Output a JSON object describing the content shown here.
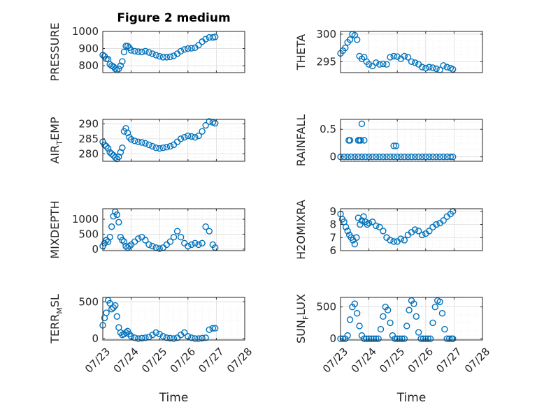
{
  "chart_data": [
    {
      "id": "pressure",
      "type": "scatter",
      "title": "Figure 2 medium",
      "ylabel": "PRESSURE",
      "ylim": [
        760,
        1000
      ],
      "yticks": [
        800,
        900,
        1000
      ],
      "ytick_labels": [
        "800",
        "900",
        "1000"
      ],
      "xlim": [
        "07/23",
        "07/28"
      ],
      "xticks": [
        "07/23",
        "07/24",
        "07/25",
        "07/26",
        "07/27",
        "07/28"
      ],
      "xticks_visible": false,
      "color": "#0072bd",
      "grid": true,
      "minor_grid": true,
      "x": [
        "07/23 00:00",
        "07/23 01:30",
        "07/23 03:00",
        "07/23 04:30",
        "07/23 06:00",
        "07/23 07:30",
        "07/23 09:00",
        "07/23 10:30",
        "07/23 12:00",
        "07/23 13:30",
        "07/23 15:00",
        "07/23 16:30",
        "07/23 18:00",
        "07/23 19:30",
        "07/23 21:00",
        "07/23 22:30",
        "07/24 00:00",
        "07/24 03:00",
        "07/24 06:00",
        "07/24 09:00",
        "07/24 12:00",
        "07/24 15:00",
        "07/24 18:00",
        "07/24 21:00",
        "07/25 00:00",
        "07/25 03:00",
        "07/25 06:00",
        "07/25 09:00",
        "07/25 12:00",
        "07/25 15:00",
        "07/25 18:00",
        "07/25 21:00",
        "07/26 00:00",
        "07/26 03:00",
        "07/26 06:00",
        "07/26 09:00",
        "07/26 12:00",
        "07/26 15:00",
        "07/26 18:00",
        "07/26 21:00",
        "07/26 23:00"
      ],
      "y": [
        862,
        855,
        840,
        838,
        808,
        800,
        795,
        782,
        775,
        782,
        800,
        825,
        880,
        915,
        915,
        905,
        890,
        885,
        882,
        880,
        885,
        878,
        870,
        862,
        855,
        850,
        850,
        852,
        858,
        870,
        885,
        895,
        900,
        902,
        905,
        920,
        940,
        955,
        965,
        965,
        968
      ]
    },
    {
      "id": "theta",
      "type": "scatter",
      "ylabel": "THETA",
      "ylim": [
        293,
        300.5
      ],
      "yticks": [
        295,
        300
      ],
      "ytick_labels": [
        "295",
        "300"
      ],
      "xlim": [
        "07/23",
        "07/28"
      ],
      "xticks": [
        "07/23",
        "07/24",
        "07/25",
        "07/26",
        "07/27",
        "07/28"
      ],
      "xticks_visible": false,
      "color": "#0072bd",
      "grid": true,
      "minor_grid": true,
      "x": [
        "07/23 00:00",
        "07/23 02:00",
        "07/23 04:00",
        "07/23 06:00",
        "07/23 08:00",
        "07/23 10:00",
        "07/23 12:00",
        "07/23 14:00",
        "07/23 16:00",
        "07/23 18:00",
        "07/23 20:00",
        "07/23 22:00",
        "07/24 00:00",
        "07/24 03:00",
        "07/24 06:00",
        "07/24 09:00",
        "07/24 12:00",
        "07/24 15:00",
        "07/24 18:00",
        "07/24 21:00",
        "07/25 00:00",
        "07/25 03:00",
        "07/25 06:00",
        "07/25 09:00",
        "07/25 12:00",
        "07/25 15:00",
        "07/25 18:00",
        "07/25 21:00",
        "07/26 00:00",
        "07/26 03:00",
        "07/26 06:00",
        "07/26 09:00",
        "07/26 12:00",
        "07/26 15:00",
        "07/26 18:00",
        "07/26 21:00",
        "07/26 23:00"
      ],
      "y": [
        296.5,
        297.0,
        297.5,
        298.5,
        299.0,
        300.0,
        299.8,
        299.0,
        296.0,
        295.5,
        295.8,
        295.0,
        294.5,
        294.2,
        294.8,
        294.5,
        294.6,
        294.5,
        295.8,
        296.0,
        295.9,
        295.5,
        296.0,
        295.8,
        295.0,
        294.8,
        294.5,
        294.0,
        293.8,
        294.0,
        293.9,
        293.7,
        293.5,
        294.3,
        294.0,
        293.8,
        293.6
      ]
    },
    {
      "id": "air_temp",
      "type": "scatter",
      "ylabel": "AIR_TEMP",
      "ylabel_main": "AIR",
      "ylabel_sub": "T",
      "ylabel_rest": "EMP",
      "ylim": [
        277.5,
        291.5
      ],
      "yticks": [
        280,
        285,
        290
      ],
      "ytick_labels": [
        "280",
        "285",
        "290"
      ],
      "xlim": [
        "07/23",
        "07/28"
      ],
      "xticks": [
        "07/23",
        "07/24",
        "07/25",
        "07/26",
        "07/27",
        "07/28"
      ],
      "xticks_visible": false,
      "color": "#0072bd",
      "grid": true,
      "minor_grid": true,
      "x": [
        "07/23 00:00",
        "07/23 01:30",
        "07/23 03:00",
        "07/23 04:30",
        "07/23 06:00",
        "07/23 07:30",
        "07/23 09:00",
        "07/23 10:30",
        "07/23 12:00",
        "07/23 13:30",
        "07/23 15:00",
        "07/23 16:30",
        "07/23 18:00",
        "07/23 19:30",
        "07/23 21:00",
        "07/23 22:30",
        "07/24 00:00",
        "07/24 03:00",
        "07/24 06:00",
        "07/24 09:00",
        "07/24 12:00",
        "07/24 15:00",
        "07/24 18:00",
        "07/24 21:00",
        "07/25 00:00",
        "07/25 03:00",
        "07/25 06:00",
        "07/25 09:00",
        "07/25 12:00",
        "07/25 15:00",
        "07/25 18:00",
        "07/25 21:00",
        "07/26 00:00",
        "07/26 03:00",
        "07/26 06:00",
        "07/26 09:00",
        "07/26 12:00",
        "07/26 15:00",
        "07/26 18:00",
        "07/26 21:00",
        "07/26 23:00"
      ],
      "y": [
        284.0,
        283.0,
        282.5,
        281.8,
        280.5,
        280.0,
        279.5,
        278.8,
        278.3,
        279.0,
        280.5,
        282.0,
        287.5,
        288.5,
        287.0,
        285.5,
        284.8,
        284.3,
        284.0,
        283.8,
        283.5,
        283.0,
        282.5,
        282.0,
        281.8,
        282.0,
        282.2,
        282.5,
        283.0,
        284.0,
        285.0,
        285.5,
        286.0,
        285.8,
        285.5,
        286.0,
        287.5,
        289.5,
        290.8,
        290.5,
        290.2
      ]
    },
    {
      "id": "rainfall",
      "type": "scatter",
      "ylabel": "RAINFALL",
      "ylim": [
        -0.08,
        0.68
      ],
      "yticks": [
        0,
        0.5
      ],
      "ytick_labels": [
        "0",
        "0.5"
      ],
      "xlim": [
        "07/23",
        "07/28"
      ],
      "xticks": [
        "07/23",
        "07/24",
        "07/25",
        "07/26",
        "07/27",
        "07/28"
      ],
      "xticks_visible": false,
      "color": "#0072bd",
      "grid": true,
      "minor_grid": true,
      "x": [
        "07/23 00:00",
        "07/23 03:00",
        "07/23 06:00",
        "07/23 09:00",
        "07/23 12:00",
        "07/23 15:00",
        "07/23 18:00",
        "07/23 21:00",
        "07/24 00:00",
        "07/24 03:00",
        "07/24 06:00",
        "07/24 09:00",
        "07/24 12:00",
        "07/24 15:00",
        "07/24 18:00",
        "07/24 21:00",
        "07/25 00:00",
        "07/25 03:00",
        "07/25 06:00",
        "07/25 09:00",
        "07/25 12:00",
        "07/25 15:00",
        "07/25 18:00",
        "07/25 21:00",
        "07/26 00:00",
        "07/26 03:00",
        "07/26 06:00",
        "07/26 09:00",
        "07/26 12:00",
        "07/26 15:00",
        "07/26 18:00",
        "07/26 21:00",
        "07/26 23:00",
        "07/23 07:00",
        "07/23 08:00",
        "07/23 15:00",
        "07/23 16:00",
        "07/23 17:00",
        "07/23 18:00",
        "07/23 20:00",
        "07/24 21:00",
        "07/24 23:00"
      ],
      "y": [
        0,
        0,
        0,
        0,
        0,
        0,
        0,
        0,
        0,
        0,
        0,
        0,
        0,
        0,
        0,
        0,
        0,
        0,
        0,
        0,
        0,
        0,
        0,
        0,
        0,
        0,
        0,
        0,
        0,
        0,
        0,
        0,
        0,
        0.3,
        0.3,
        0.3,
        0.3,
        0.3,
        0.6,
        0.3,
        0.2,
        0.2
      ]
    },
    {
      "id": "mixdepth",
      "type": "scatter",
      "ylabel": "MIXDEPTH",
      "ylim": [
        -50,
        1350
      ],
      "yticks": [
        0,
        500,
        1000
      ],
      "ytick_labels": [
        "0",
        "500",
        "1000"
      ],
      "xlim": [
        "07/23",
        "07/28"
      ],
      "xticks": [
        "07/23",
        "07/24",
        "07/25",
        "07/26",
        "07/27",
        "07/28"
      ],
      "xticks_visible": false,
      "color": "#0072bd",
      "grid": true,
      "minor_grid": true,
      "x": [
        "07/23 00:00",
        "07/23 01:30",
        "07/23 03:00",
        "07/23 04:30",
        "07/23 06:00",
        "07/23 07:30",
        "07/23 09:00",
        "07/23 10:30",
        "07/23 12:00",
        "07/23 13:30",
        "07/23 15:00",
        "07/23 16:30",
        "07/23 18:00",
        "07/23 19:30",
        "07/23 21:00",
        "07/23 22:30",
        "07/24 00:00",
        "07/24 03:00",
        "07/24 06:00",
        "07/24 09:00",
        "07/24 12:00",
        "07/24 15:00",
        "07/24 18:00",
        "07/24 21:00",
        "07/25 00:00",
        "07/25 03:00",
        "07/25 06:00",
        "07/25 09:00",
        "07/25 12:00",
        "07/25 15:00",
        "07/25 18:00",
        "07/25 21:00",
        "07/26 00:00",
        "07/26 03:00",
        "07/26 06:00",
        "07/26 09:00",
        "07/26 12:00",
        "07/26 15:00",
        "07/26 18:00",
        "07/26 21:00",
        "07/26 23:00"
      ],
      "y": [
        100,
        200,
        300,
        250,
        400,
        750,
        1100,
        1250,
        1150,
        900,
        400,
        300,
        250,
        100,
        50,
        100,
        150,
        250,
        350,
        400,
        300,
        150,
        100,
        50,
        20,
        50,
        150,
        250,
        400,
        600,
        400,
        200,
        100,
        150,
        200,
        150,
        200,
        750,
        600,
        150,
        50
      ]
    },
    {
      "id": "h2omixra",
      "type": "scatter",
      "ylabel": "H2OMIXRA",
      "ylim": [
        6,
        9.2
      ],
      "yticks": [
        6,
        7,
        8,
        9
      ],
      "ytick_labels": [
        "6",
        "7",
        "8",
        "9"
      ],
      "xlim": [
        "07/23",
        "07/28"
      ],
      "xticks": [
        "07/23",
        "07/24",
        "07/25",
        "07/26",
        "07/27",
        "07/28"
      ],
      "xticks_visible": false,
      "color": "#0072bd",
      "grid": true,
      "minor_grid": true,
      "x": [
        "07/23 00:00",
        "07/23 01:30",
        "07/23 03:00",
        "07/23 04:30",
        "07/23 06:00",
        "07/23 07:30",
        "07/23 09:00",
        "07/23 10:30",
        "07/23 12:00",
        "07/23 13:30",
        "07/23 15:00",
        "07/23 16:30",
        "07/23 18:00",
        "07/23 19:30",
        "07/23 21:00",
        "07/23 22:30",
        "07/24 00:00",
        "07/24 03:00",
        "07/24 06:00",
        "07/24 09:00",
        "07/24 12:00",
        "07/24 15:00",
        "07/24 18:00",
        "07/24 21:00",
        "07/25 00:00",
        "07/25 03:00",
        "07/25 06:00",
        "07/25 09:00",
        "07/25 12:00",
        "07/25 15:00",
        "07/25 18:00",
        "07/25 21:00",
        "07/26 00:00",
        "07/26 03:00",
        "07/26 06:00",
        "07/26 09:00",
        "07/26 12:00",
        "07/26 15:00",
        "07/26 18:00",
        "07/26 21:00",
        "07/26 23:00"
      ],
      "y": [
        8.8,
        8.4,
        8.2,
        7.8,
        7.5,
        7.2,
        7.0,
        6.8,
        6.5,
        7.0,
        8.5,
        8.0,
        8.3,
        8.6,
        8.2,
        8.0,
        8.1,
        8.2,
        7.9,
        7.8,
        7.5,
        7.0,
        6.8,
        6.7,
        6.7,
        6.9,
        6.8,
        7.2,
        7.4,
        7.6,
        7.5,
        7.2,
        7.3,
        7.5,
        7.8,
        8.0,
        8.1,
        8.3,
        8.6,
        8.8,
        9.0
      ]
    },
    {
      "id": "terr_msl",
      "type": "scatter",
      "ylabel": "TERR_MSL",
      "ylabel_main": "TERR",
      "ylabel_sub": "M",
      "ylabel_rest": "SL",
      "ylim": [
        -20,
        560
      ],
      "yticks": [
        0,
        500
      ],
      "ytick_labels": [
        "0",
        "500"
      ],
      "xlim": [
        "07/23",
        "07/28"
      ],
      "xticks": [
        "07/23",
        "07/24",
        "07/25",
        "07/26",
        "07/27",
        "07/28"
      ],
      "xtick_labels": [
        "07/23",
        "07/24",
        "07/25",
        "07/26",
        "07/27",
        "07/28"
      ],
      "xlabel": "Time",
      "color": "#0072bd",
      "grid": true,
      "minor_grid": true,
      "x": [
        "07/23 00:00",
        "07/23 01:30",
        "07/23 03:00",
        "07/23 04:30",
        "07/23 06:00",
        "07/23 07:30",
        "07/23 09:00",
        "07/23 10:30",
        "07/23 12:00",
        "07/23 13:30",
        "07/23 15:00",
        "07/23 16:30",
        "07/23 18:00",
        "07/23 19:30",
        "07/23 21:00",
        "07/23 22:30",
        "07/24 00:00",
        "07/24 03:00",
        "07/24 06:00",
        "07/24 09:00",
        "07/24 12:00",
        "07/24 15:00",
        "07/24 18:00",
        "07/24 21:00",
        "07/25 00:00",
        "07/25 03:00",
        "07/25 06:00",
        "07/25 09:00",
        "07/25 12:00",
        "07/25 15:00",
        "07/25 18:00",
        "07/25 21:00",
        "07/26 00:00",
        "07/26 03:00",
        "07/26 06:00",
        "07/26 09:00",
        "07/26 12:00",
        "07/26 15:00",
        "07/26 18:00",
        "07/26 21:00",
        "07/26 23:00"
      ],
      "y": [
        180,
        280,
        350,
        520,
        480,
        400,
        420,
        450,
        300,
        150,
        80,
        50,
        60,
        80,
        100,
        60,
        30,
        10,
        0,
        5,
        10,
        20,
        50,
        80,
        60,
        30,
        10,
        5,
        0,
        10,
        50,
        80,
        30,
        10,
        0,
        0,
        5,
        10,
        120,
        140,
        140
      ]
    },
    {
      "id": "sun_flux",
      "type": "scatter",
      "ylabel": "SUN_FLUX",
      "ylabel_main": "SUN",
      "ylabel_sub": "F",
      "ylabel_rest": "LUX",
      "ylim": [
        -20,
        650
      ],
      "yticks": [
        0,
        500
      ],
      "ytick_labels": [
        "0",
        "500"
      ],
      "xlim": [
        "07/23",
        "07/28"
      ],
      "xticks": [
        "07/23",
        "07/24",
        "07/25",
        "07/26",
        "07/27",
        "07/28"
      ],
      "xtick_labels": [
        "07/23",
        "07/24",
        "07/25",
        "07/26",
        "07/27",
        "07/28"
      ],
      "xlabel": "Time",
      "color": "#0072bd",
      "grid": true,
      "minor_grid": true,
      "x": [
        "07/23 00:00",
        "07/23 02:00",
        "07/23 04:00",
        "07/23 06:00",
        "07/23 08:00",
        "07/23 10:00",
        "07/23 12:00",
        "07/23 14:00",
        "07/23 16:00",
        "07/23 18:00",
        "07/23 20:00",
        "07/23 22:00",
        "07/24 00:00",
        "07/24 02:00",
        "07/24 04:00",
        "07/24 06:00",
        "07/24 08:00",
        "07/24 10:00",
        "07/24 12:00",
        "07/24 14:00",
        "07/24 16:00",
        "07/24 18:00",
        "07/24 20:00",
        "07/24 22:00",
        "07/25 00:00",
        "07/25 02:00",
        "07/25 04:00",
        "07/25 06:00",
        "07/25 08:00",
        "07/25 10:00",
        "07/25 12:00",
        "07/25 14:00",
        "07/25 16:00",
        "07/25 18:00",
        "07/25 20:00",
        "07/25 22:00",
        "07/26 00:00",
        "07/26 02:00",
        "07/26 04:00",
        "07/26 06:00",
        "07/26 08:00",
        "07/26 10:00",
        "07/26 12:00",
        "07/26 14:00",
        "07/26 16:00",
        "07/26 18:00",
        "07/26 20:00",
        "07/26 22:00",
        "07/26 23:00"
      ],
      "y": [
        0,
        0,
        0,
        50,
        300,
        500,
        550,
        400,
        200,
        50,
        0,
        0,
        0,
        0,
        0,
        0,
        0,
        150,
        350,
        500,
        450,
        250,
        50,
        0,
        0,
        0,
        0,
        0,
        200,
        450,
        600,
        550,
        350,
        100,
        0,
        0,
        0,
        0,
        0,
        250,
        500,
        600,
        580,
        400,
        150,
        0,
        0,
        0,
        0
      ]
    }
  ]
}
